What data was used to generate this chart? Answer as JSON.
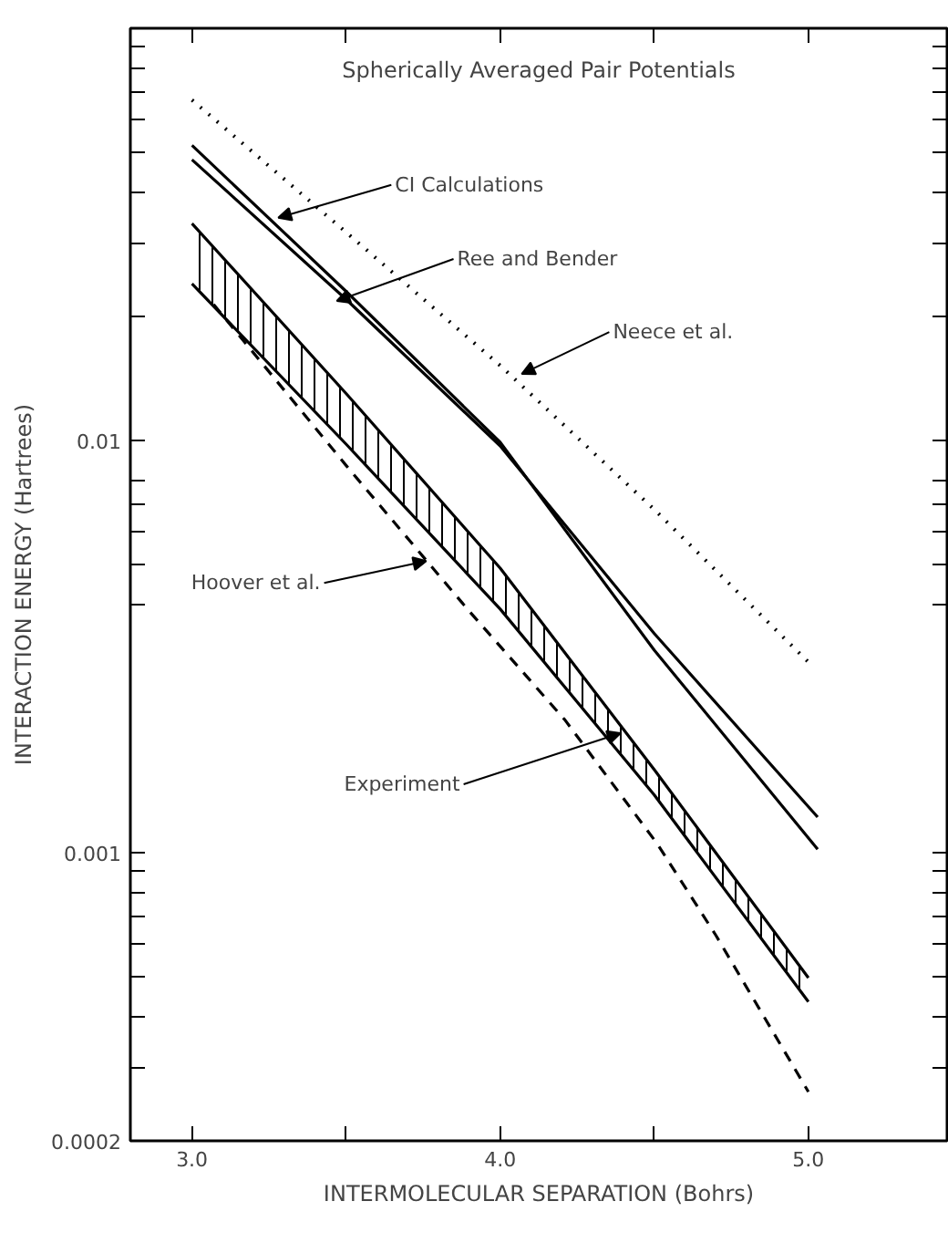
{
  "chart_data": {
    "type": "line",
    "title": "Spherically Averaged Pair Potentials",
    "xlabel": "INTERMOLECULAR SEPARATION (Bohrs)",
    "ylabel": "INTERACTION ENERGY (Hartrees)",
    "log": "y",
    "grid": false,
    "xlim": [
      2.8,
      5.45
    ],
    "ylim": [
      0.0002,
      0.1
    ],
    "xticks": [
      {
        "value": 3,
        "label": "3.0"
      },
      {
        "value": 3.5,
        "label": null
      },
      {
        "value": 4,
        "label": "4.0"
      },
      {
        "value": 4.5,
        "label": null
      },
      {
        "value": 5,
        "label": "5.0"
      }
    ],
    "yticks": [
      0.0002,
      {
        "value": 0.0003,
        "label": null
      },
      {
        "value": 0.0004,
        "label": null
      },
      {
        "value": 0.0005,
        "label": null
      },
      {
        "value": 0.0006,
        "label": null
      },
      {
        "value": 0.0007,
        "label": null
      },
      {
        "value": 0.0008,
        "label": null
      },
      {
        "value": 0.0009,
        "label": null
      },
      0.001,
      {
        "value": 0.004,
        "label": null
      },
      {
        "value": 0.005,
        "label": null
      },
      {
        "value": 0.006,
        "label": null
      },
      {
        "value": 0.007,
        "label": null
      },
      {
        "value": 0.008,
        "label": null
      },
      0.01,
      {
        "value": 0.02,
        "label": null
      },
      {
        "value": 0.03,
        "label": null
      },
      {
        "value": 0.04,
        "label": null
      },
      {
        "value": 0.05,
        "label": null
      },
      {
        "value": 0.06,
        "label": null
      },
      {
        "value": 0.07,
        "label": null
      },
      {
        "value": 0.08,
        "label": null
      },
      {
        "value": 0.09,
        "label": null
      }
    ],
    "series": [
      {
        "color": "#000000",
        "line_style": "dotted",
        "x": [
          3.0,
          3.5,
          4.0,
          4.5,
          5.0
        ],
        "values": [
          0.067,
          0.032,
          0.0152,
          0.0068,
          0.0029
        ]
      },
      {
        "color": "#000000",
        "line_style": "solid",
        "x": [
          3.0,
          3.5,
          4.0,
          4.5,
          5.03
        ],
        "values": [
          0.052,
          0.023,
          0.0099,
          0.0031,
          0.00102
        ]
      },
      {
        "color": "#000000",
        "line_style": "solid",
        "x": [
          3.0,
          3.5,
          4.0,
          4.5,
          5.03
        ],
        "values": [
          0.048,
          0.022,
          0.0097,
          0.0034,
          0.00122
        ]
      },
      {
        "color": "#000000",
        "line_style": "solid",
        "x": [
          3.0,
          3.5,
          4.0,
          4.5,
          5.0
        ],
        "values": [
          0.0336,
          0.013,
          0.0049,
          0.00159,
          0.000497
        ],
        "lower": [
          0.024,
          0.0098,
          0.0039,
          0.00138,
          0.000435
        ],
        "upper": [
          0.0336,
          0.013,
          0.0049,
          0.00159,
          0.000497
        ]
      },
      {
        "color": "#000000",
        "line_style": "solid",
        "x": [
          3.0,
          3.5,
          4.0,
          4.5,
          5.0
        ],
        "values": [
          0.024,
          0.0098,
          0.0039,
          0.00138,
          0.000435
        ]
      },
      {
        "color": "#000000",
        "line_style": "dashed",
        "x": [
          3.07,
          3.5,
          3.9,
          4.21,
          4.51,
          4.7,
          5.0
        ],
        "values": [
          0.0214,
          0.0087,
          0.00385,
          0.0021,
          0.00105,
          0.00063,
          0.000263
        ]
      }
    ],
    "annotations": [
      {
        "text": "CI Calculations",
        "x": 3.28,
        "y": 0.0347
      },
      {
        "text": "Ree and Bender",
        "x": 3.47,
        "y": 0.0218
      },
      {
        "text": "Neece et al.",
        "x": 4.07,
        "y": 0.0145
      },
      {
        "text": "Hoover et al.",
        "x": 3.76,
        "y": 0.0051
      },
      {
        "text": "Experiment",
        "x": 4.39,
        "y": 0.00195
      }
    ]
  }
}
